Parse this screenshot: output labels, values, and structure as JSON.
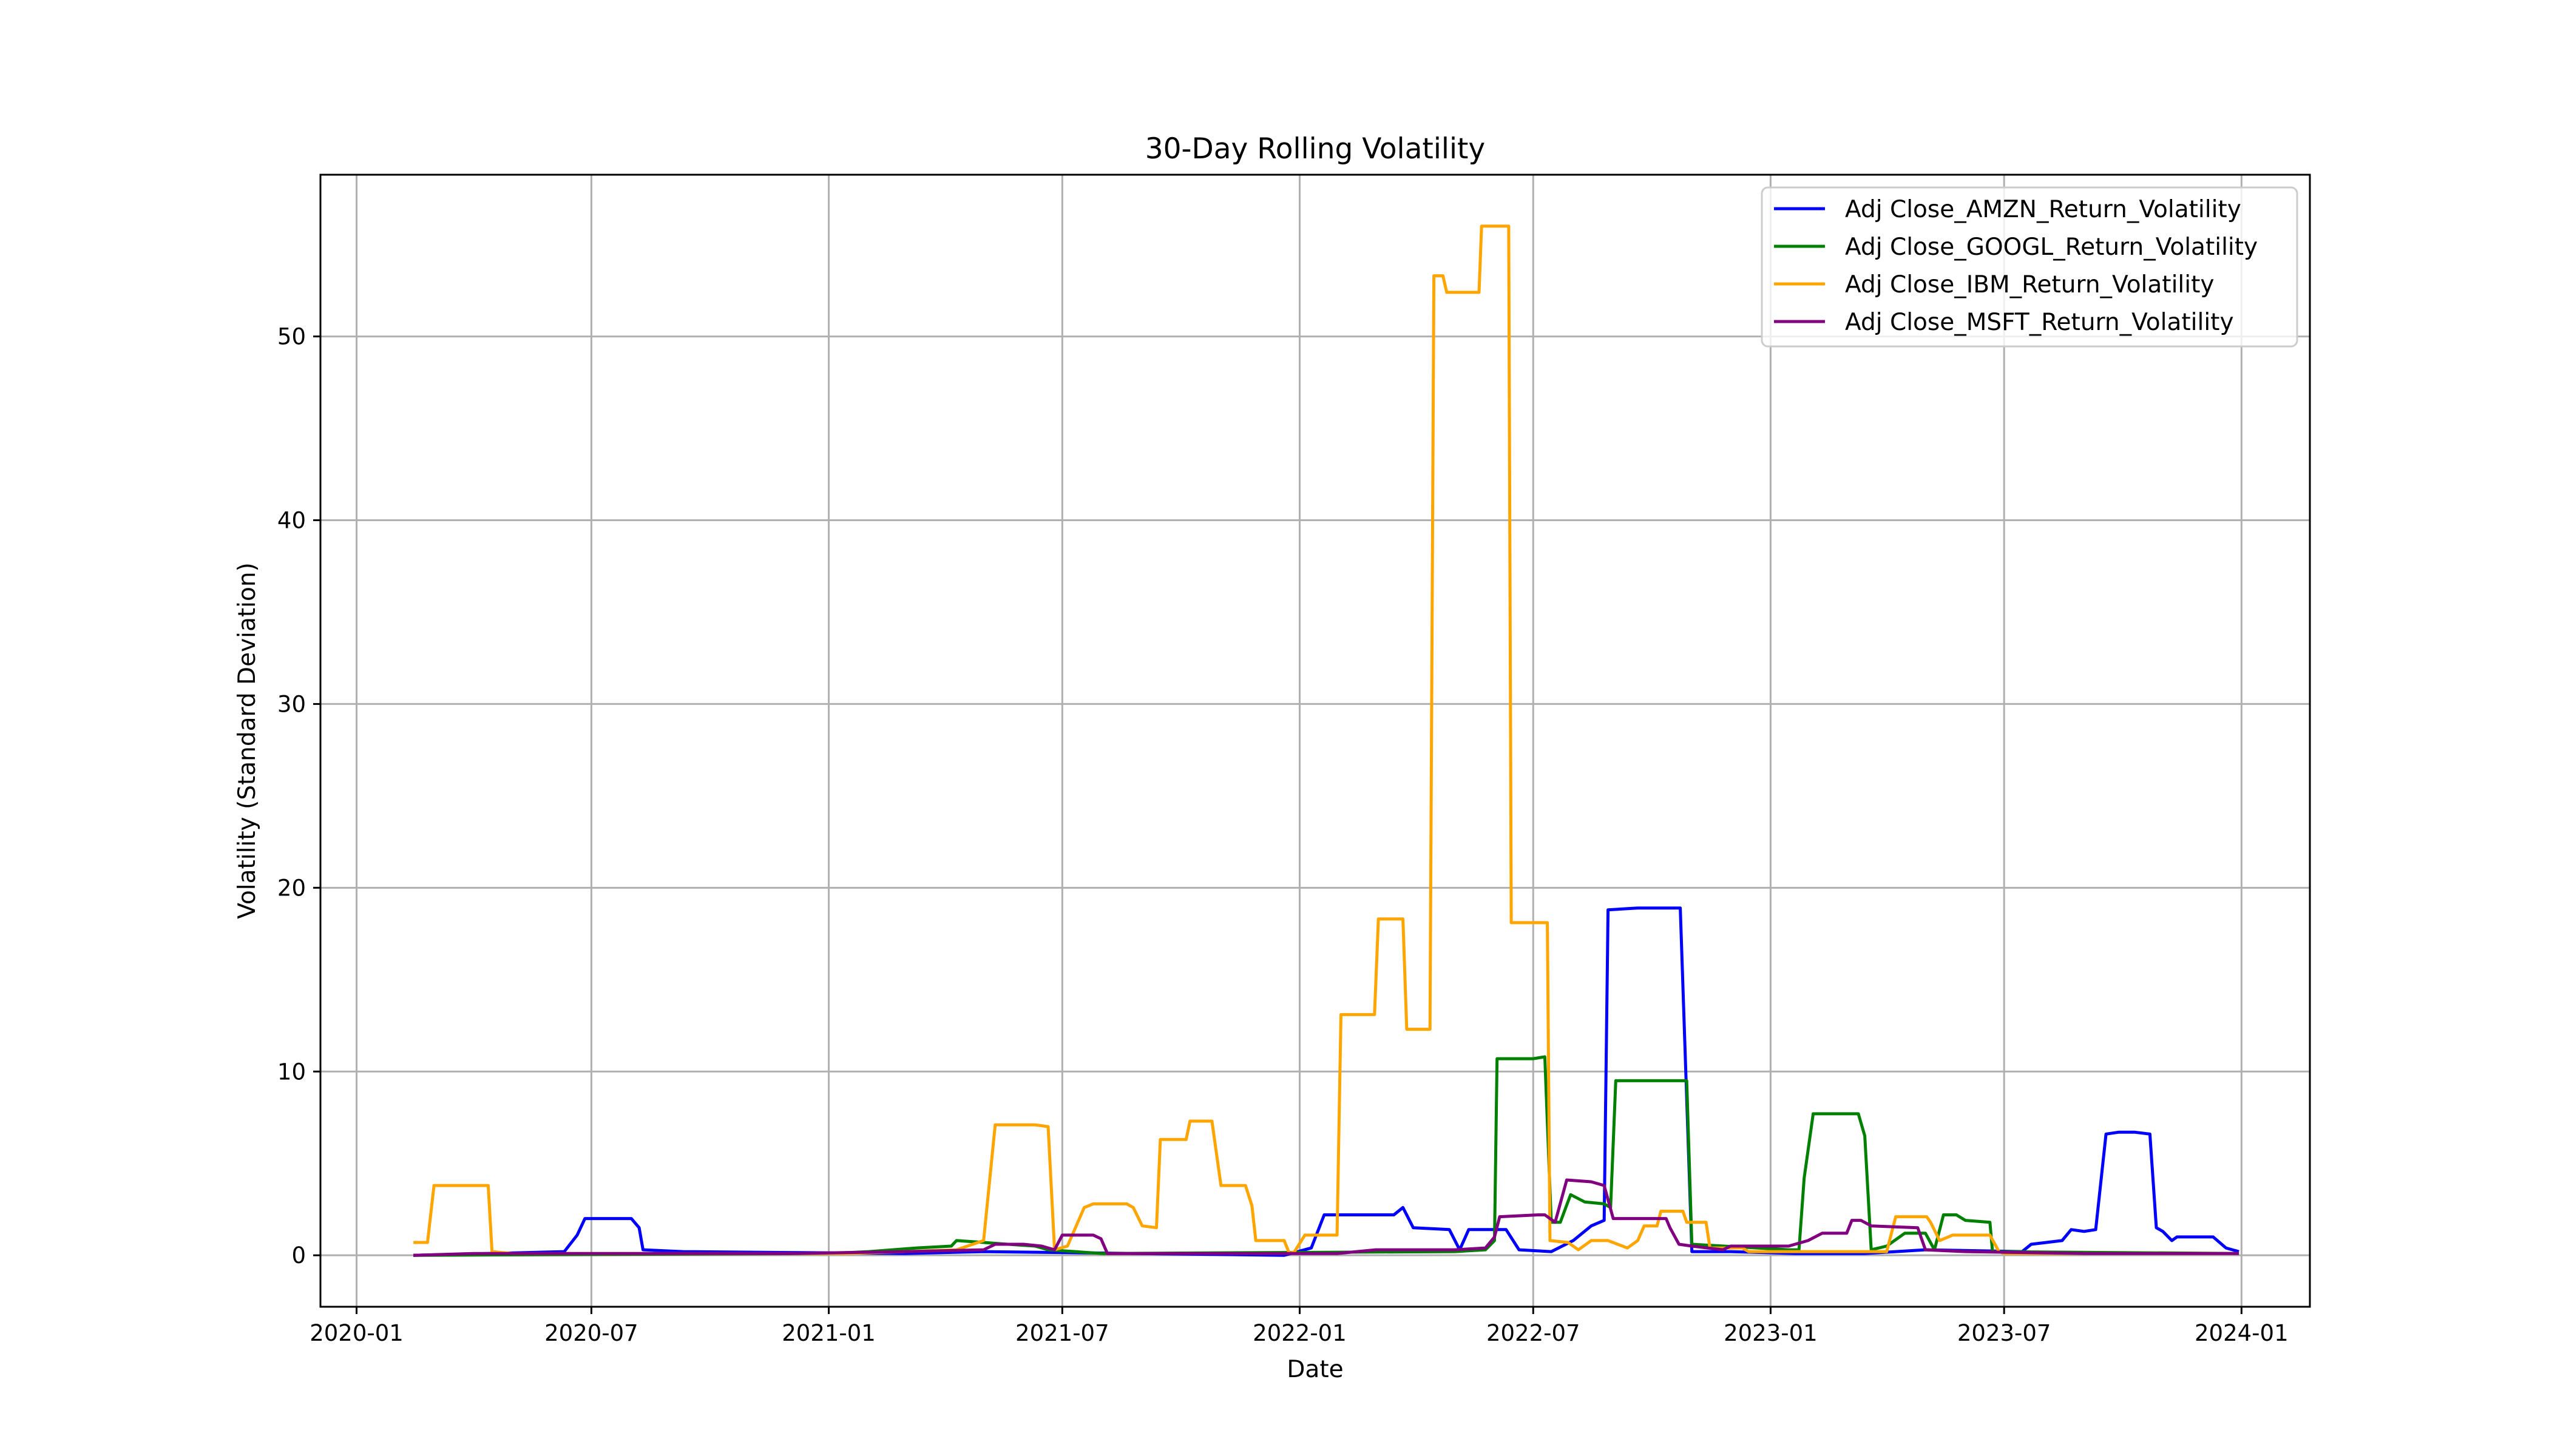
{
  "chart_data": {
    "type": "line",
    "title": "30-Day Rolling Volatility",
    "xlabel": "Date",
    "ylabel": "Volatility (Standard Deviation)",
    "xlim": [
      "2019-12-04",
      "2024-02-23"
    ],
    "ylim": [
      -2.8,
      58.8
    ],
    "x_ticks": [
      "2020-01",
      "2020-07",
      "2021-01",
      "2021-07",
      "2022-01",
      "2022-07",
      "2023-01",
      "2023-07",
      "2024-01"
    ],
    "y_ticks": [
      0,
      10,
      20,
      30,
      40,
      50
    ],
    "grid": true,
    "legend_position": "top-right",
    "series": [
      {
        "name": "Adj Close_AMZN_Return_Volatility",
        "color": "#0000ff",
        "points": [
          [
            "2020-02-14",
            0.0
          ],
          [
            "2020-06-10",
            0.2
          ],
          [
            "2020-06-20",
            1.1
          ],
          [
            "2020-06-26",
            2.0
          ],
          [
            "2020-07-15",
            2.0
          ],
          [
            "2020-07-20",
            2.0
          ],
          [
            "2020-08-01",
            2.0
          ],
          [
            "2020-08-07",
            1.5
          ],
          [
            "2020-08-10",
            0.3
          ],
          [
            "2020-09-10",
            0.2
          ],
          [
            "2021-03-01",
            0.1
          ],
          [
            "2021-05-01",
            0.2
          ],
          [
            "2021-12-20",
            0.0
          ],
          [
            "2022-01-10",
            0.4
          ],
          [
            "2022-01-20",
            2.2
          ],
          [
            "2022-03-15",
            2.2
          ],
          [
            "2022-03-22",
            2.6
          ],
          [
            "2022-03-30",
            1.5
          ],
          [
            "2022-04-27",
            1.4
          ],
          [
            "2022-05-05",
            0.3
          ],
          [
            "2022-05-12",
            1.4
          ],
          [
            "2022-06-10",
            1.4
          ],
          [
            "2022-06-20",
            0.3
          ],
          [
            "2022-07-15",
            0.2
          ],
          [
            "2022-08-01",
            0.8
          ],
          [
            "2022-08-15",
            1.6
          ],
          [
            "2022-08-25",
            1.9
          ],
          [
            "2022-08-28",
            18.8
          ],
          [
            "2022-09-20",
            18.9
          ],
          [
            "2022-10-01",
            18.9
          ],
          [
            "2022-10-06",
            18.9
          ],
          [
            "2022-10-23",
            18.9
          ],
          [
            "2022-11-01",
            0.2
          ],
          [
            "2022-12-01",
            0.2
          ],
          [
            "2023-01-20",
            0.1
          ],
          [
            "2023-03-15",
            0.1
          ],
          [
            "2023-05-01",
            0.3
          ],
          [
            "2023-07-15",
            0.2
          ],
          [
            "2023-07-22",
            0.6
          ],
          [
            "2023-08-15",
            0.8
          ],
          [
            "2023-08-22",
            1.4
          ],
          [
            "2023-09-01",
            1.3
          ],
          [
            "2023-09-10",
            1.4
          ],
          [
            "2023-09-18",
            6.6
          ],
          [
            "2023-09-28",
            6.7
          ],
          [
            "2023-10-10",
            6.7
          ],
          [
            "2023-10-22",
            6.6
          ],
          [
            "2023-10-27",
            1.5
          ],
          [
            "2023-11-01",
            1.3
          ],
          [
            "2023-11-08",
            0.8
          ],
          [
            "2023-11-12",
            1.0
          ],
          [
            "2023-12-10",
            1.0
          ],
          [
            "2023-12-20",
            0.4
          ],
          [
            "2023-12-30",
            0.2
          ]
        ]
      },
      {
        "name": "Adj Close_GOOGL_Return_Volatility",
        "color": "#008000",
        "points": [
          [
            "2020-02-14",
            0.0
          ],
          [
            "2021-01-01",
            0.1
          ],
          [
            "2021-02-01",
            0.2
          ],
          [
            "2021-03-10",
            0.4
          ],
          [
            "2021-04-06",
            0.5
          ],
          [
            "2021-04-10",
            0.8
          ],
          [
            "2021-05-01",
            0.7
          ],
          [
            "2021-05-20",
            0.6
          ],
          [
            "2021-06-10",
            0.5
          ],
          [
            "2021-06-20",
            0.3
          ],
          [
            "2021-08-01",
            0.1
          ],
          [
            "2022-05-01",
            0.2
          ],
          [
            "2022-05-25",
            0.3
          ],
          [
            "2022-06-01",
            0.8
          ],
          [
            "2022-06-03",
            10.7
          ],
          [
            "2022-06-15",
            10.7
          ],
          [
            "2022-07-01",
            10.7
          ],
          [
            "2022-07-10",
            10.8
          ],
          [
            "2022-07-15",
            1.8
          ],
          [
            "2022-07-22",
            1.8
          ],
          [
            "2022-07-30",
            3.3
          ],
          [
            "2022-08-10",
            2.9
          ],
          [
            "2022-08-25",
            2.8
          ],
          [
            "2022-08-30",
            2.6
          ],
          [
            "2022-09-03",
            9.5
          ],
          [
            "2022-10-01",
            9.5
          ],
          [
            "2022-10-28",
            9.5
          ],
          [
            "2022-11-01",
            0.6
          ],
          [
            "2023-01-15",
            0.3
          ],
          [
            "2023-01-23",
            0.3
          ],
          [
            "2023-01-27",
            4.2
          ],
          [
            "2023-02-03",
            7.7
          ],
          [
            "2023-03-10",
            7.7
          ],
          [
            "2023-03-15",
            6.5
          ],
          [
            "2023-03-20",
            0.3
          ],
          [
            "2023-04-01",
            0.5
          ],
          [
            "2023-04-15",
            1.2
          ],
          [
            "2023-05-01",
            1.2
          ],
          [
            "2023-05-08",
            0.3
          ],
          [
            "2023-05-15",
            2.2
          ],
          [
            "2023-05-25",
            2.2
          ],
          [
            "2023-06-01",
            1.9
          ],
          [
            "2023-06-20",
            1.8
          ],
          [
            "2023-06-22",
            0.2
          ],
          [
            "2023-12-30",
            0.1
          ]
        ]
      },
      {
        "name": "Adj Close_IBM_Return_Volatility",
        "color": "#ffa500",
        "points": [
          [
            "2020-02-14",
            0.7
          ],
          [
            "2020-02-25",
            0.7
          ],
          [
            "2020-03-01",
            3.8
          ],
          [
            "2020-04-12",
            3.8
          ],
          [
            "2020-04-15",
            0.2
          ],
          [
            "2020-05-01",
            0.1
          ],
          [
            "2020-08-01",
            0.1
          ],
          [
            "2021-01-15",
            0.1
          ],
          [
            "2021-03-01",
            0.2
          ],
          [
            "2021-04-10",
            0.3
          ],
          [
            "2021-05-01",
            0.8
          ],
          [
            "2021-05-10",
            7.1
          ],
          [
            "2021-06-10",
            7.1
          ],
          [
            "2021-06-20",
            7.0
          ],
          [
            "2021-06-25",
            0.3
          ],
          [
            "2021-07-05",
            0.5
          ],
          [
            "2021-07-18",
            2.6
          ],
          [
            "2021-07-25",
            2.8
          ],
          [
            "2021-08-20",
            2.8
          ],
          [
            "2021-08-25",
            2.6
          ],
          [
            "2021-09-01",
            1.6
          ],
          [
            "2021-09-12",
            1.5
          ],
          [
            "2021-09-15",
            6.3
          ],
          [
            "2021-10-05",
            6.3
          ],
          [
            "2021-10-08",
            7.3
          ],
          [
            "2021-10-25",
            7.3
          ],
          [
            "2021-11-01",
            3.8
          ],
          [
            "2021-11-20",
            3.8
          ],
          [
            "2021-11-25",
            2.7
          ],
          [
            "2021-11-28",
            0.8
          ],
          [
            "2021-12-20",
            0.8
          ],
          [
            "2021-12-24",
            0.1
          ],
          [
            "2021-12-28",
            0.2
          ],
          [
            "2022-01-05",
            1.1
          ],
          [
            "2022-01-30",
            1.1
          ],
          [
            "2022-02-02",
            13.1
          ],
          [
            "2022-02-28",
            13.1
          ],
          [
            "2022-03-03",
            18.3
          ],
          [
            "2022-03-22",
            18.3
          ],
          [
            "2022-03-25",
            12.3
          ],
          [
            "2022-04-12",
            12.3
          ],
          [
            "2022-04-15",
            53.3
          ],
          [
            "2022-04-22",
            53.3
          ],
          [
            "2022-04-25",
            52.4
          ],
          [
            "2022-05-20",
            52.4
          ],
          [
            "2022-05-22",
            56.0
          ],
          [
            "2022-06-12",
            56.0
          ],
          [
            "2022-06-14",
            18.1
          ],
          [
            "2022-07-05",
            18.1
          ],
          [
            "2022-07-12",
            18.1
          ],
          [
            "2022-07-14",
            0.8
          ],
          [
            "2022-07-28",
            0.7
          ],
          [
            "2022-08-05",
            0.3
          ],
          [
            "2022-08-15",
            0.8
          ],
          [
            "2022-08-28",
            0.8
          ],
          [
            "2022-09-12",
            0.4
          ],
          [
            "2022-09-20",
            0.8
          ],
          [
            "2022-09-25",
            1.6
          ],
          [
            "2022-10-05",
            1.6
          ],
          [
            "2022-10-08",
            2.4
          ],
          [
            "2022-10-25",
            2.4
          ],
          [
            "2022-10-28",
            1.8
          ],
          [
            "2022-11-12",
            1.8
          ],
          [
            "2022-11-15",
            0.4
          ],
          [
            "2022-12-10",
            0.4
          ],
          [
            "2022-12-15",
            0.2
          ],
          [
            "2023-01-15",
            0.2
          ],
          [
            "2023-04-01",
            0.2
          ],
          [
            "2023-04-08",
            2.1
          ],
          [
            "2023-05-02",
            2.1
          ],
          [
            "2023-05-05",
            1.8
          ],
          [
            "2023-05-12",
            0.8
          ],
          [
            "2023-05-22",
            1.1
          ],
          [
            "2023-06-20",
            1.1
          ],
          [
            "2023-06-27",
            0.2
          ],
          [
            "2023-07-01",
            0.1
          ],
          [
            "2023-12-30",
            0.1
          ]
        ]
      },
      {
        "name": "Adj Close_MSFT_Return_Volatility",
        "color": "#800080",
        "points": [
          [
            "2020-02-14",
            0.0
          ],
          [
            "2020-04-01",
            0.1
          ],
          [
            "2020-06-01",
            0.1
          ],
          [
            "2020-12-01",
            0.1
          ],
          [
            "2021-03-01",
            0.2
          ],
          [
            "2021-05-01",
            0.3
          ],
          [
            "2021-05-10",
            0.6
          ],
          [
            "2021-06-01",
            0.6
          ],
          [
            "2021-06-15",
            0.5
          ],
          [
            "2021-06-25",
            0.3
          ],
          [
            "2021-07-01",
            1.1
          ],
          [
            "2021-07-25",
            1.1
          ],
          [
            "2021-07-31",
            0.9
          ],
          [
            "2021-08-05",
            0.1
          ],
          [
            "2022-01-01",
            0.1
          ],
          [
            "2022-01-30",
            0.1
          ],
          [
            "2022-03-01",
            0.3
          ],
          [
            "2022-04-01",
            0.3
          ],
          [
            "2022-05-01",
            0.3
          ],
          [
            "2022-05-25",
            0.4
          ],
          [
            "2022-06-01",
            1.0
          ],
          [
            "2022-06-05",
            2.1
          ],
          [
            "2022-07-05",
            2.2
          ],
          [
            "2022-07-10",
            2.2
          ],
          [
            "2022-07-18",
            1.8
          ],
          [
            "2022-07-27",
            4.1
          ],
          [
            "2022-08-15",
            4.0
          ],
          [
            "2022-08-25",
            3.8
          ],
          [
            "2022-09-01",
            2.0
          ],
          [
            "2022-10-01",
            2.0
          ],
          [
            "2022-10-12",
            2.0
          ],
          [
            "2022-10-15",
            1.5
          ],
          [
            "2022-10-22",
            0.6
          ],
          [
            "2022-11-01",
            0.5
          ],
          [
            "2022-11-25",
            0.3
          ],
          [
            "2022-12-01",
            0.5
          ],
          [
            "2023-01-15",
            0.5
          ],
          [
            "2023-01-30",
            0.8
          ],
          [
            "2023-02-10",
            1.2
          ],
          [
            "2023-03-01",
            1.2
          ],
          [
            "2023-03-05",
            1.9
          ],
          [
            "2023-03-12",
            1.9
          ],
          [
            "2023-03-20",
            1.6
          ],
          [
            "2023-04-25",
            1.5
          ],
          [
            "2023-05-01",
            0.3
          ],
          [
            "2023-06-01",
            0.2
          ],
          [
            "2023-09-01",
            0.1
          ],
          [
            "2023-12-30",
            0.1
          ]
        ]
      }
    ]
  }
}
